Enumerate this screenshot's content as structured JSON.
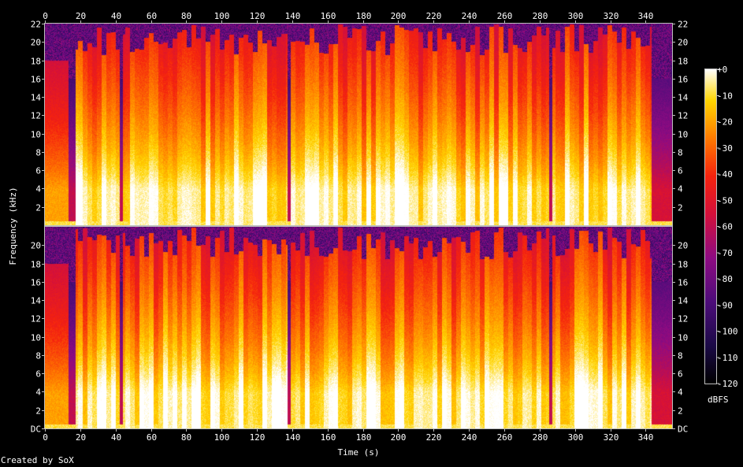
{
  "chart_data": {
    "type": "heatmap",
    "xlabel": "Time (s)",
    "ylabel": "Frequency (kHz)",
    "time_ticks": [
      "0",
      "20",
      "40",
      "60",
      "80",
      "100",
      "120",
      "140",
      "160",
      "180",
      "200",
      "220",
      "240",
      "260",
      "280",
      "300",
      "320",
      "340"
    ],
    "time_tick_values": [
      0,
      20,
      40,
      60,
      80,
      100,
      120,
      140,
      160,
      180,
      200,
      220,
      240,
      260,
      280,
      300,
      320,
      340
    ],
    "xlim": [
      0,
      355
    ],
    "ylim_khz": [
      0,
      22
    ],
    "channels": [
      {
        "freq_tick_labels": [
          "2",
          "4",
          "6",
          "8",
          "10",
          "12",
          "14",
          "16",
          "18",
          "20",
          "22"
        ],
        "freq_tick_values": [
          2,
          4,
          6,
          8,
          10,
          12,
          14,
          16,
          18,
          20,
          22
        ]
      },
      {
        "freq_tick_labels": [
          "DC",
          "2",
          "4",
          "6",
          "8",
          "10",
          "12",
          "14",
          "16",
          "18",
          "20"
        ],
        "freq_tick_values": [
          0,
          2,
          4,
          6,
          8,
          10,
          12,
          14,
          16,
          18,
          20
        ]
      }
    ],
    "colorbar": {
      "unit": "dBFS",
      "range": [
        -120,
        0
      ],
      "tick_labels": [
        "+0",
        "-10",
        "-20",
        "-30",
        "-40",
        "-50",
        "-60",
        "-70",
        "-80",
        "-90",
        "-100",
        "-110",
        "-120"
      ],
      "tick_values": [
        0,
        -10,
        -20,
        -30,
        -40,
        -50,
        -60,
        -70,
        -80,
        -90,
        -100,
        -110,
        -120
      ]
    },
    "silent_gaps_s": [
      [
        13,
        17
      ],
      [
        42,
        44
      ],
      [
        137,
        139
      ],
      [
        285,
        287
      ],
      [
        343,
        350
      ]
    ]
  },
  "footer": {
    "credit": "Created by SoX"
  },
  "colors": {
    "background": "#000000",
    "axis": "#bdbdbd",
    "text": "#ffffff"
  }
}
